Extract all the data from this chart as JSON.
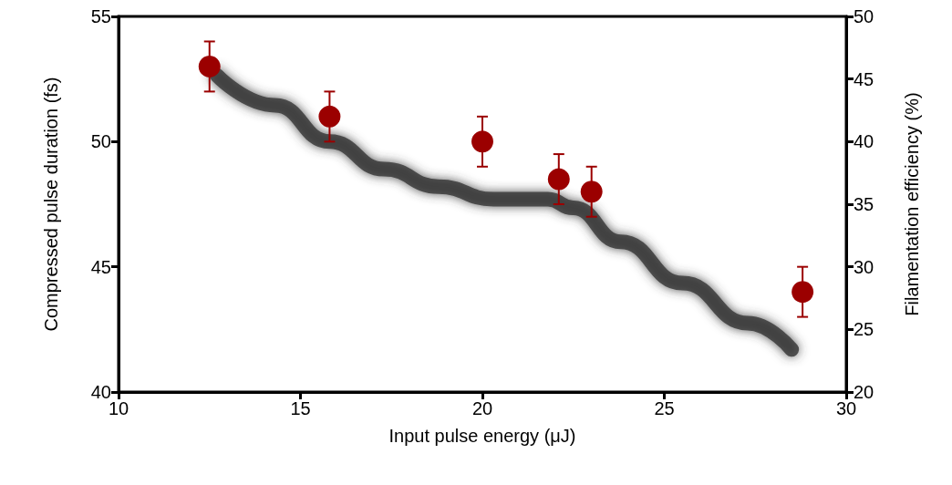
{
  "chart_data": {
    "type": "scatter",
    "xlabel": "Input pulse energy (μJ)",
    "ylabel": "Compressed pulse duration (fs)",
    "y2label": "Filamentation efficiency (%)",
    "xlim": [
      10,
      30
    ],
    "xticks": [
      10,
      15,
      20,
      25,
      30
    ],
    "ylim": [
      40,
      55
    ],
    "yticks": [
      40,
      45,
      50,
      55
    ],
    "y2lim": [
      20,
      50
    ],
    "y2ticks": [
      20,
      25,
      30,
      35,
      40,
      45,
      50
    ],
    "series": [
      {
        "marker": "circle",
        "color": "#9b0000",
        "x": [
          12.5,
          15.8,
          20,
          22.1,
          23.0,
          28.8
        ],
        "values": [
          53,
          51,
          50,
          48.5,
          48,
          44
        ],
        "errors": [
          1,
          1,
          1,
          1,
          1,
          1
        ]
      },
      {
        "type": "line",
        "axis": "y2",
        "marker": "none",
        "color": "#3a3a3a",
        "line_style": "solid",
        "x": [
          12.7,
          14.3,
          15.8,
          17.3,
          18.8,
          20.3,
          21.8,
          22.5,
          23.8,
          25.5,
          27.3,
          28.5
        ],
        "values": [
          45.3,
          42.9,
          40,
          37.8,
          36.4,
          35.4,
          35.4,
          34.7,
          32,
          28.7,
          25.5,
          23.4
        ]
      }
    ]
  }
}
